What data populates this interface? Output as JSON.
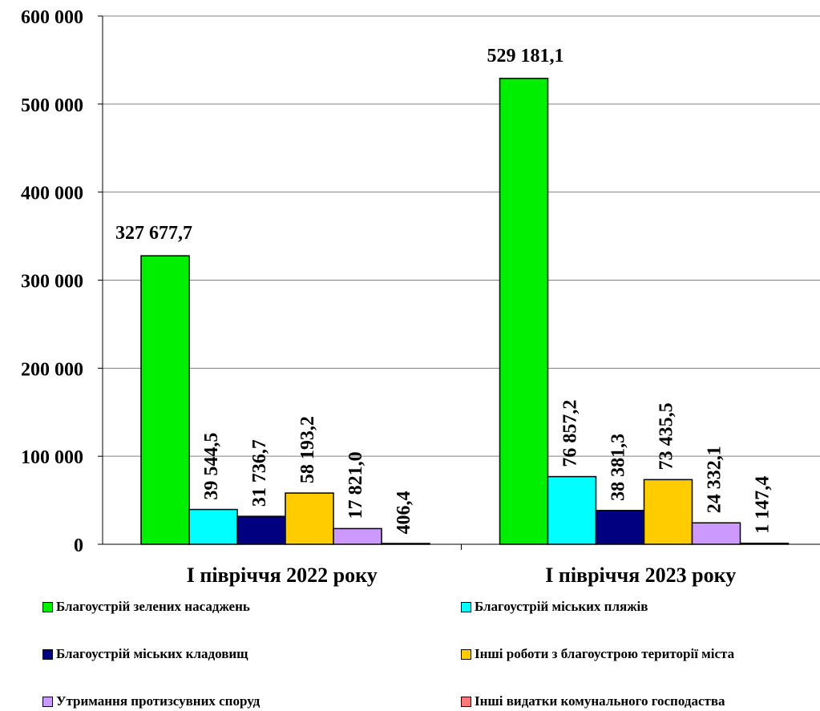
{
  "chart_data": {
    "type": "bar",
    "categories": [
      "І півріччя 2022 року",
      "І півріччя 2023 року"
    ],
    "ylim": [
      0,
      600000
    ],
    "y_ticks": [
      "0",
      "100 000",
      "200 000",
      "300 000",
      "400 000",
      "500 000",
      "600 000"
    ],
    "grid": true,
    "legend_position": "bottom",
    "series": [
      {
        "name": "Благоустрій зелених насаджень",
        "color": "#00ee00",
        "values": [
          327677.7,
          529181.1
        ],
        "labels": [
          "327 677,7",
          "529 181,1"
        ]
      },
      {
        "name": "Благоустрій міських пляжів",
        "color": "#00ffff",
        "values": [
          39544.5,
          76857.2
        ],
        "labels": [
          "39 544,5",
          "76 857,2"
        ]
      },
      {
        "name": "Благоустрій міських кладовищ",
        "color": "#000080",
        "values": [
          31736.7,
          38381.3
        ],
        "labels": [
          "31 736,7",
          "38 381,3"
        ]
      },
      {
        "name": "Інші роботи з благоустрою території міста",
        "color": "#ffcc00",
        "values": [
          58193.2,
          73435.5
        ],
        "labels": [
          "58 193,2",
          "73 435,5"
        ]
      },
      {
        "name": "Утримання протизсувних споруд",
        "color": "#cc99ff",
        "values": [
          17821.0,
          24332.1
        ],
        "labels": [
          "17 821,0",
          "24 332,1"
        ]
      },
      {
        "name": "Інші видатки комунального господаства",
        "color": "#ff7777",
        "values": [
          406.4,
          1147.4
        ],
        "labels": [
          "406,4",
          "1 147,4"
        ]
      }
    ]
  }
}
